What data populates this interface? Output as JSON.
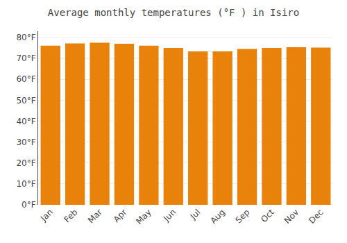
{
  "chart_data": {
    "type": "bar",
    "title": "Average monthly temperatures (°F ) in Isiro",
    "categories": [
      "Jan",
      "Feb",
      "Mar",
      "Apr",
      "May",
      "Jun",
      "Jul",
      "Aug",
      "Sep",
      "Oct",
      "Nov",
      "Dec"
    ],
    "values": [
      76.1,
      77.2,
      77.5,
      77.0,
      76.1,
      75.0,
      73.4,
      73.4,
      74.5,
      75.0,
      75.4,
      75.2
    ],
    "color": "#E8820A",
    "ylim": [
      0,
      83
    ],
    "yticks": [
      {
        "value": 0,
        "label": "0°F"
      },
      {
        "value": 10,
        "label": "10°F"
      },
      {
        "value": 20,
        "label": "20°F"
      },
      {
        "value": 30,
        "label": "30°F"
      },
      {
        "value": 40,
        "label": "40°F"
      },
      {
        "value": 50,
        "label": "50°F"
      },
      {
        "value": 60,
        "label": "60°F"
      },
      {
        "value": 70,
        "label": "70°F"
      },
      {
        "value": 80,
        "label": "80°F"
      }
    ],
    "grid": true
  }
}
